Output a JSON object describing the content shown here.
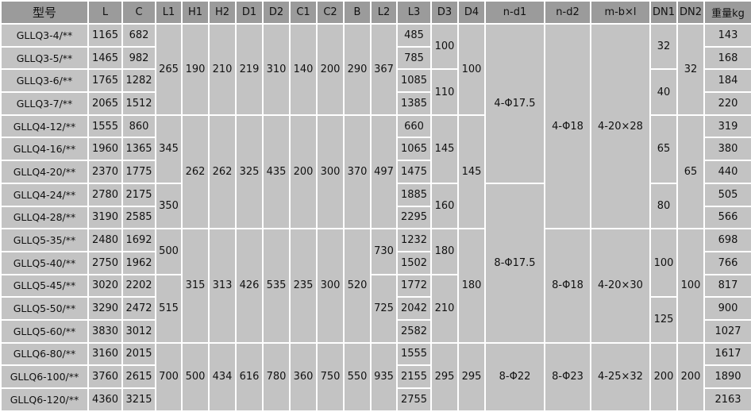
{
  "colors": {
    "header_bg": "#9b9b9b",
    "cell_bg": "#c3c3c3",
    "grid": "#ffffff"
  },
  "columns": [
    {
      "key": "model",
      "label": "型号"
    },
    {
      "key": "L",
      "label": "L"
    },
    {
      "key": "C",
      "label": "C"
    },
    {
      "key": "L1",
      "label": "L1"
    },
    {
      "key": "H1",
      "label": "H1"
    },
    {
      "key": "H2",
      "label": "H2"
    },
    {
      "key": "D1",
      "label": "D1"
    },
    {
      "key": "D2",
      "label": "D2"
    },
    {
      "key": "C1",
      "label": "C1"
    },
    {
      "key": "C2",
      "label": "C2"
    },
    {
      "key": "B",
      "label": "B"
    },
    {
      "key": "L2",
      "label": "L2"
    },
    {
      "key": "L3",
      "label": "L3"
    },
    {
      "key": "D3",
      "label": "D3"
    },
    {
      "key": "D4",
      "label": "D4"
    },
    {
      "key": "nd1",
      "label": "n-d1"
    },
    {
      "key": "nd2",
      "label": "n-d2"
    },
    {
      "key": "mbl",
      "label": "m-b×l"
    },
    {
      "key": "DN1",
      "label": "DN1"
    },
    {
      "key": "DN2",
      "label": "DN2"
    },
    {
      "key": "weight",
      "label": "重量kg"
    }
  ],
  "rows": [
    [
      {
        "c": "model",
        "v": "GLLQ3-4/**"
      },
      {
        "c": "L",
        "v": "1165"
      },
      {
        "c": "C",
        "v": "682"
      },
      {
        "c": "L1",
        "v": "265",
        "span": 4
      },
      {
        "c": "H1",
        "v": "190",
        "span": 4
      },
      {
        "c": "H2",
        "v": "210",
        "span": 4
      },
      {
        "c": "D1",
        "v": "219",
        "span": 4
      },
      {
        "c": "D2",
        "v": "310",
        "span": 4
      },
      {
        "c": "C1",
        "v": "140",
        "span": 4
      },
      {
        "c": "C2",
        "v": "200",
        "span": 4
      },
      {
        "c": "B",
        "v": "290",
        "span": 4
      },
      {
        "c": "L2",
        "v": "367",
        "span": 4
      },
      {
        "c": "L3",
        "v": "485"
      },
      {
        "c": "D3",
        "v": "100",
        "span": 2
      },
      {
        "c": "D4",
        "v": "100",
        "span": 4
      },
      {
        "c": "nd1",
        "v": "4-Φ17.5",
        "span": 7
      },
      {
        "c": "nd2",
        "v": "4-Φ18",
        "span": 9
      },
      {
        "c": "mbl",
        "v": "4-20×28",
        "span": 9
      },
      {
        "c": "DN1",
        "v": "32",
        "span": 2
      },
      {
        "c": "DN2",
        "v": "32",
        "span": 4
      },
      {
        "c": "weight",
        "v": "143"
      }
    ],
    [
      {
        "c": "model",
        "v": "GLLQ3-5/**"
      },
      {
        "c": "L",
        "v": "1465"
      },
      {
        "c": "C",
        "v": "982"
      },
      {
        "c": "L3",
        "v": "785"
      },
      {
        "c": "weight",
        "v": "168"
      }
    ],
    [
      {
        "c": "model",
        "v": "GLLQ3-6/**"
      },
      {
        "c": "L",
        "v": "1765"
      },
      {
        "c": "C",
        "v": "1282"
      },
      {
        "c": "L3",
        "v": "1085"
      },
      {
        "c": "D3",
        "v": "110",
        "span": 2
      },
      {
        "c": "DN1",
        "v": "40",
        "span": 2
      },
      {
        "c": "weight",
        "v": "184"
      }
    ],
    [
      {
        "c": "model",
        "v": "GLLQ3-7/**"
      },
      {
        "c": "L",
        "v": "2065"
      },
      {
        "c": "C",
        "v": "1512"
      },
      {
        "c": "L3",
        "v": "1385"
      },
      {
        "c": "weight",
        "v": "220"
      }
    ],
    [
      {
        "c": "model",
        "v": "GLLQ4-12/**"
      },
      {
        "c": "L",
        "v": "1555"
      },
      {
        "c": "C",
        "v": "860"
      },
      {
        "c": "L1",
        "v": "345",
        "span": 3
      },
      {
        "c": "H1",
        "v": "262",
        "span": 5
      },
      {
        "c": "H2",
        "v": "262",
        "span": 5
      },
      {
        "c": "D1",
        "v": "325",
        "span": 5
      },
      {
        "c": "D2",
        "v": "435",
        "span": 5
      },
      {
        "c": "C1",
        "v": "200",
        "span": 5
      },
      {
        "c": "C2",
        "v": "300",
        "span": 5
      },
      {
        "c": "B",
        "v": "370",
        "span": 5
      },
      {
        "c": "L2",
        "v": "497",
        "span": 5
      },
      {
        "c": "L3",
        "v": "660"
      },
      {
        "c": "D3",
        "v": "145",
        "span": 3
      },
      {
        "c": "D4",
        "v": "145",
        "span": 5
      },
      {
        "c": "DN1",
        "v": "65",
        "span": 3
      },
      {
        "c": "DN2",
        "v": "65",
        "span": 5
      },
      {
        "c": "weight",
        "v": "319"
      }
    ],
    [
      {
        "c": "model",
        "v": "GLLQ4-16/**"
      },
      {
        "c": "L",
        "v": "1960"
      },
      {
        "c": "C",
        "v": "1365"
      },
      {
        "c": "L3",
        "v": "1065"
      },
      {
        "c": "weight",
        "v": "380"
      }
    ],
    [
      {
        "c": "model",
        "v": "GLLQ4-20/**"
      },
      {
        "c": "L",
        "v": "2370"
      },
      {
        "c": "C",
        "v": "1775"
      },
      {
        "c": "L3",
        "v": "1475"
      },
      {
        "c": "weight",
        "v": "440"
      }
    ],
    [
      {
        "c": "model",
        "v": "GLLQ4-24/**"
      },
      {
        "c": "L",
        "v": "2780"
      },
      {
        "c": "C",
        "v": "2175"
      },
      {
        "c": "L1",
        "v": "350",
        "span": 2
      },
      {
        "c": "L3",
        "v": "1885"
      },
      {
        "c": "D3",
        "v": "160",
        "span": 2
      },
      {
        "c": "nd1",
        "v": "8-Φ17.5",
        "span": 7
      },
      {
        "c": "DN1",
        "v": "80",
        "span": 2
      },
      {
        "c": "weight",
        "v": "505"
      }
    ],
    [
      {
        "c": "model",
        "v": "GLLQ4-28/**"
      },
      {
        "c": "L",
        "v": "3190"
      },
      {
        "c": "C",
        "v": "2585"
      },
      {
        "c": "L3",
        "v": "2295"
      },
      {
        "c": "weight",
        "v": "566"
      }
    ],
    [
      {
        "c": "model",
        "v": "GLLQ5-35/**"
      },
      {
        "c": "L",
        "v": "2480"
      },
      {
        "c": "C",
        "v": "1692"
      },
      {
        "c": "L1",
        "v": "500",
        "span": 2
      },
      {
        "c": "H1",
        "v": "315",
        "span": 5
      },
      {
        "c": "H2",
        "v": "313",
        "span": 5
      },
      {
        "c": "D1",
        "v": "426",
        "span": 5
      },
      {
        "c": "D2",
        "v": "535",
        "span": 5
      },
      {
        "c": "C1",
        "v": "235",
        "span": 5
      },
      {
        "c": "C2",
        "v": "300",
        "span": 5
      },
      {
        "c": "B",
        "v": "520",
        "span": 5
      },
      {
        "c": "L2",
        "v": "730",
        "span": 2
      },
      {
        "c": "L3",
        "v": "1232"
      },
      {
        "c": "D3",
        "v": "180",
        "span": 2
      },
      {
        "c": "D4",
        "v": "180",
        "span": 5
      },
      {
        "c": "nd2",
        "v": "8-Φ18",
        "span": 5
      },
      {
        "c": "mbl",
        "v": "4-20×30",
        "span": 5
      },
      {
        "c": "DN1",
        "v": "100",
        "span": 3
      },
      {
        "c": "DN2",
        "v": "100",
        "span": 5
      },
      {
        "c": "weight",
        "v": "698"
      }
    ],
    [
      {
        "c": "model",
        "v": "GLLQ5-40/**"
      },
      {
        "c": "L",
        "v": "2750"
      },
      {
        "c": "C",
        "v": "1962"
      },
      {
        "c": "L3",
        "v": "1502"
      },
      {
        "c": "weight",
        "v": "766"
      }
    ],
    [
      {
        "c": "model",
        "v": "GLLQ5-45/**"
      },
      {
        "c": "L",
        "v": "3020"
      },
      {
        "c": "C",
        "v": "2202"
      },
      {
        "c": "L1",
        "v": "515",
        "span": 3
      },
      {
        "c": "L2",
        "v": "725",
        "span": 3
      },
      {
        "c": "L3",
        "v": "1772"
      },
      {
        "c": "D3",
        "v": "210",
        "span": 3
      },
      {
        "c": "weight",
        "v": "817"
      }
    ],
    [
      {
        "c": "model",
        "v": "GLLQ5-50/**"
      },
      {
        "c": "L",
        "v": "3290"
      },
      {
        "c": "C",
        "v": "2472"
      },
      {
        "c": "L3",
        "v": "2042"
      },
      {
        "c": "DN1",
        "v": "125",
        "span": 2
      },
      {
        "c": "weight",
        "v": "900"
      }
    ],
    [
      {
        "c": "model",
        "v": "GLLQ5-60/**"
      },
      {
        "c": "L",
        "v": "3830"
      },
      {
        "c": "C",
        "v": "3012"
      },
      {
        "c": "L3",
        "v": "2582"
      },
      {
        "c": "weight",
        "v": "1027"
      }
    ],
    [
      {
        "c": "model",
        "v": "GLLQ6-80/**"
      },
      {
        "c": "L",
        "v": "3160"
      },
      {
        "c": "C",
        "v": "2015"
      },
      {
        "c": "L1",
        "v": "700",
        "span": 3
      },
      {
        "c": "H1",
        "v": "500",
        "span": 3
      },
      {
        "c": "H2",
        "v": "434",
        "span": 3
      },
      {
        "c": "D1",
        "v": "616",
        "span": 3
      },
      {
        "c": "D2",
        "v": "780",
        "span": 3
      },
      {
        "c": "C1",
        "v": "360",
        "span": 3
      },
      {
        "c": "C2",
        "v": "750",
        "span": 3
      },
      {
        "c": "B",
        "v": "550",
        "span": 3
      },
      {
        "c": "L2",
        "v": "935",
        "span": 3
      },
      {
        "c": "L3",
        "v": "1555"
      },
      {
        "c": "D3",
        "v": "295",
        "span": 3
      },
      {
        "c": "D4",
        "v": "295",
        "span": 3
      },
      {
        "c": "nd1",
        "v": "8-Φ22",
        "span": 3
      },
      {
        "c": "nd2",
        "v": "8-Φ23",
        "span": 3
      },
      {
        "c": "mbl",
        "v": "4-25×32",
        "span": 3
      },
      {
        "c": "DN1",
        "v": "200",
        "span": 3
      },
      {
        "c": "DN2",
        "v": "200",
        "span": 3
      },
      {
        "c": "weight",
        "v": "1617"
      }
    ],
    [
      {
        "c": "model",
        "v": "GLLQ6-100/**"
      },
      {
        "c": "L",
        "v": "3760"
      },
      {
        "c": "C",
        "v": "2615"
      },
      {
        "c": "L3",
        "v": "2155"
      },
      {
        "c": "weight",
        "v": "1890"
      }
    ],
    [
      {
        "c": "model",
        "v": "GLLQ6-120/**"
      },
      {
        "c": "L",
        "v": "4360"
      },
      {
        "c": "C",
        "v": "3215"
      },
      {
        "c": "L3",
        "v": "2755"
      },
      {
        "c": "weight",
        "v": "2163"
      }
    ]
  ]
}
